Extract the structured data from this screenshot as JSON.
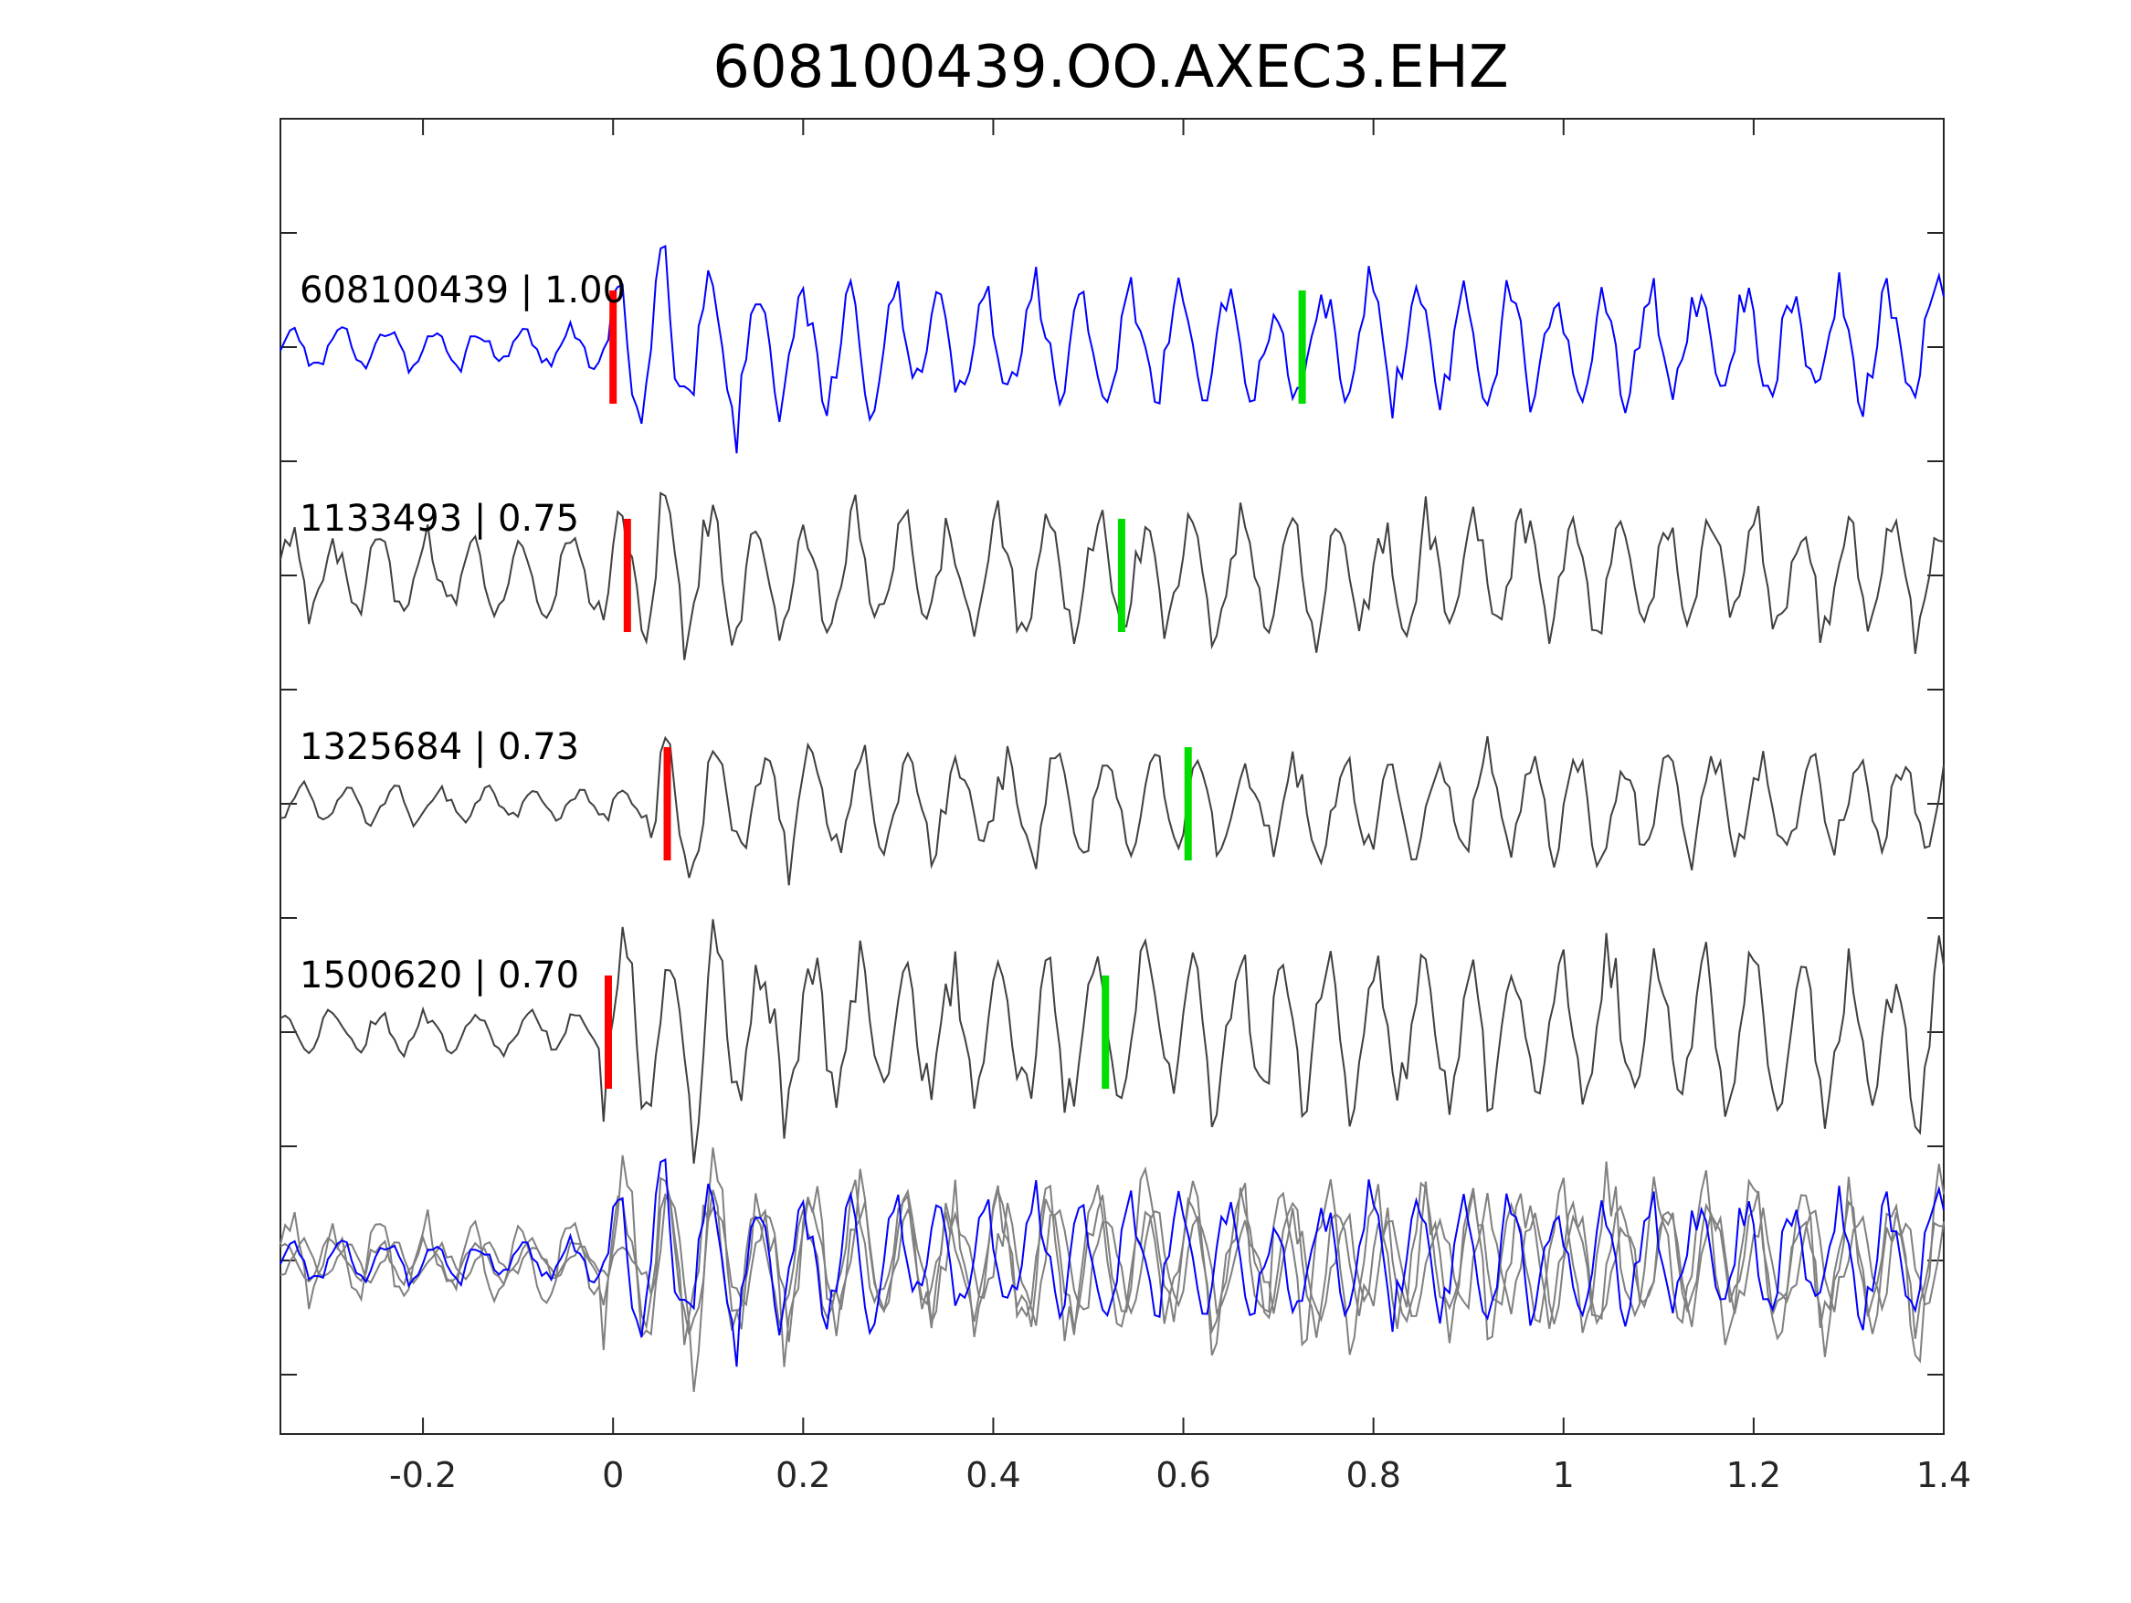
{
  "chart_data": {
    "type": "line",
    "title": "608100439.OO.AXEC3.EHZ",
    "xlabel": "",
    "ylabel": "",
    "xlim": [
      -0.35,
      1.4
    ],
    "x_ticks": [
      -0.2,
      0,
      0.2,
      0.4,
      0.6,
      0.8,
      1,
      1.2,
      1.4
    ],
    "x_tick_labels": [
      "-0.2",
      "0",
      "0.2",
      "0.4",
      "0.6",
      "0.8",
      "1",
      "1.2",
      "1.4"
    ],
    "grid": false,
    "legend": "none",
    "sample_interval": 0.005,
    "traces": [
      {
        "label": "608100439 | 1.00",
        "id": "608100439",
        "correlation": 1.0,
        "color": "#0000ff",
        "p_pick": 0.0,
        "s_pick": 0.725,
        "onset": 0.0,
        "pre_amp": 0.18,
        "post_amp": 0.55,
        "freq": 20,
        "seed": 11
      },
      {
        "label": "1133493 | 0.75",
        "id": "1133493",
        "correlation": 0.75,
        "color": "#404040",
        "p_pick": 0.015,
        "s_pick": 0.535,
        "onset": -0.01,
        "pre_amp": 0.38,
        "post_amp": 0.55,
        "freq": 20,
        "seed": 23
      },
      {
        "label": "1325684 | 0.73",
        "id": "1325684",
        "correlation": 0.73,
        "color": "#404040",
        "p_pick": 0.057,
        "s_pick": 0.605,
        "onset": 0.04,
        "pre_amp": 0.16,
        "post_amp": 0.45,
        "freq": 20,
        "seed": 37
      },
      {
        "label": "1500620 | 0.70",
        "id": "1500620",
        "correlation": 0.7,
        "color": "#404040",
        "p_pick": -0.005,
        "s_pick": 0.518,
        "onset": -0.01,
        "pre_amp": 0.18,
        "post_amp": 0.7,
        "freq": 20,
        "seed": 53
      }
    ],
    "overlay": {
      "reference_color": "#0000ff",
      "other_color": "#808080"
    },
    "pick_colors": {
      "p": "#ff0000",
      "s": "#00dd00"
    }
  }
}
